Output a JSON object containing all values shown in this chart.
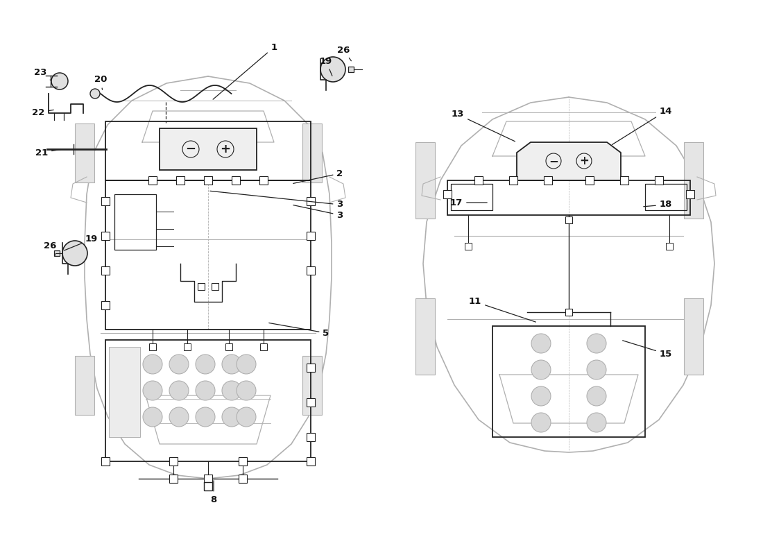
{
  "bg_color": "#ffffff",
  "car_lc": "#b0b0b0",
  "part_lc": "#222222",
  "text_color": "#111111",
  "fig_width": 11.0,
  "fig_height": 8.0,
  "dpi": 100
}
